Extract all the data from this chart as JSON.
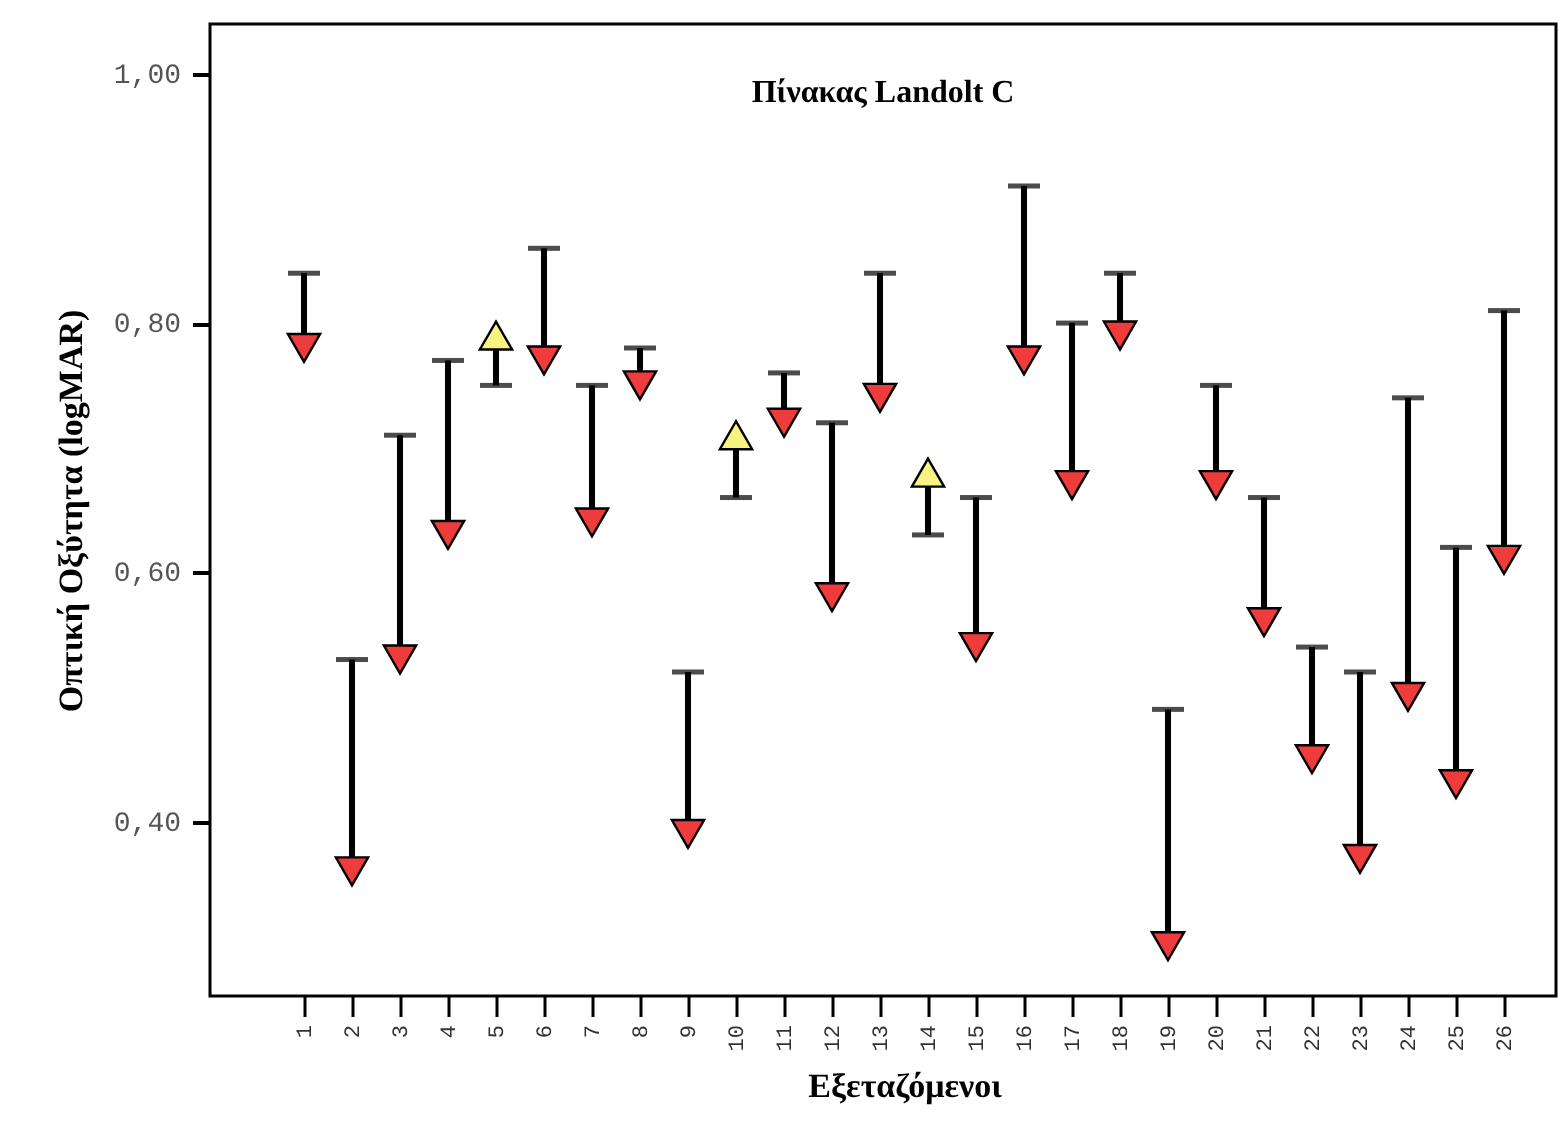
{
  "chart_data": {
    "type": "scatter",
    "title": "Πίνακας Landolt C",
    "xlabel": "Εξεταζόμενοι",
    "ylabel": "Οπτική Οξύτητα (logMAR)",
    "categories": [
      "1",
      "2",
      "3",
      "4",
      "5",
      "6",
      "7",
      "8",
      "9",
      "10",
      "11",
      "12",
      "13",
      "14",
      "15",
      "16",
      "17",
      "18",
      "19",
      "20",
      "21",
      "22",
      "23",
      "24",
      "25",
      "26"
    ],
    "values": [
      0.78,
      0.36,
      0.53,
      0.63,
      0.79,
      0.77,
      0.64,
      0.75,
      0.39,
      0.71,
      0.72,
      0.58,
      0.74,
      0.68,
      0.54,
      0.77,
      0.67,
      0.79,
      0.3,
      0.67,
      0.56,
      0.45,
      0.37,
      0.5,
      0.43,
      0.61
    ],
    "errors": [
      [
        0.78,
        0.84
      ],
      [
        0.36,
        0.53
      ],
      [
        0.53,
        0.71
      ],
      [
        0.63,
        0.77
      ],
      [
        0.75,
        0.79
      ],
      [
        0.77,
        0.86
      ],
      [
        0.64,
        0.75
      ],
      [
        0.75,
        0.78
      ],
      [
        0.39,
        0.52
      ],
      [
        0.66,
        0.71
      ],
      [
        0.72,
        0.76
      ],
      [
        0.58,
        0.72
      ],
      [
        0.74,
        0.84
      ],
      [
        0.63,
        0.68
      ],
      [
        0.54,
        0.66
      ],
      [
        0.77,
        0.91
      ],
      [
        0.67,
        0.8
      ],
      [
        0.79,
        0.84
      ],
      [
        0.3,
        0.49
      ],
      [
        0.67,
        0.75
      ],
      [
        0.56,
        0.66
      ],
      [
        0.45,
        0.54
      ],
      [
        0.37,
        0.52
      ],
      [
        0.5,
        0.74
      ],
      [
        0.43,
        0.62
      ],
      [
        0.61,
        0.81
      ]
    ],
    "colors": [
      "#ee3b3b",
      "#ee3b3b",
      "#ee3b3b",
      "#ee3b3b",
      "#f7f383",
      "#ee3b3b",
      "#ee3b3b",
      "#ee3b3b",
      "#ee3b3b",
      "#f7f383",
      "#ee3b3b",
      "#ee3b3b",
      "#ee3b3b",
      "#f7f383",
      "#ee3b3b",
      "#ee3b3b",
      "#ee3b3b",
      "#ee3b3b",
      "#ee3b3b",
      "#ee3b3b",
      "#ee3b3b",
      "#ee3b3b",
      "#ee3b3b",
      "#ee3b3b",
      "#ee3b3b",
      "#ee3b3b"
    ],
    "marker": "triangle",
    "ylim": [
      0.26,
      1.04
    ],
    "yticks": [
      {
        "value": 0.4,
        "label": "0,40"
      },
      {
        "value": 0.6,
        "label": "0,60"
      },
      {
        "value": 0.8,
        "label": "0,80"
      },
      {
        "value": 1.0,
        "label": "1,00"
      }
    ]
  }
}
